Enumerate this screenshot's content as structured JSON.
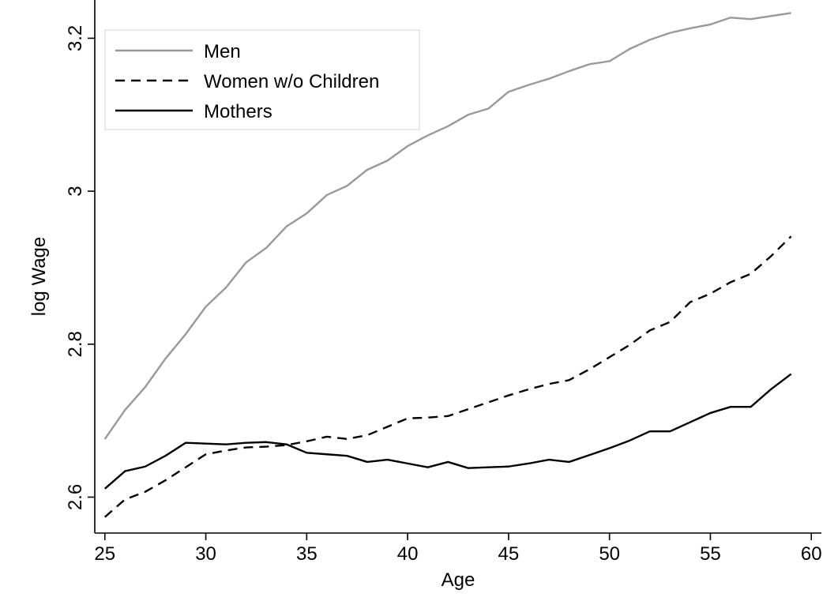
{
  "chart_data": {
    "type": "line",
    "xlabel": "Age",
    "ylabel": "log Wage",
    "xlim": [
      24.5,
      60.5
    ],
    "ylim": [
      2.553,
      3.25
    ],
    "xticks": [
      25,
      30,
      35,
      40,
      45,
      50,
      55,
      60
    ],
    "yticks": [
      2.6,
      2.8,
      3,
      3.2
    ],
    "xtick_labels": [
      "25",
      "30",
      "35",
      "40",
      "45",
      "50",
      "55",
      "60"
    ],
    "ytick_labels": [
      "2.6",
      "2.8",
      "3",
      "3.2"
    ],
    "grid": false,
    "legend_position": "top-left",
    "x": [
      25,
      26,
      27,
      28,
      29,
      30,
      31,
      32,
      33,
      34,
      35,
      36,
      37,
      38,
      39,
      40,
      41,
      42,
      43,
      44,
      45,
      46,
      47,
      48,
      49,
      50,
      51,
      52,
      53,
      54,
      55,
      56,
      57,
      58,
      59
    ],
    "series": [
      {
        "name": "Men",
        "color": "#999999",
        "dash": "solid",
        "values": [
          2.676,
          2.714,
          2.744,
          2.781,
          2.813,
          2.849,
          2.874,
          2.907,
          2.926,
          2.954,
          2.971,
          2.995,
          3.007,
          3.028,
          3.04,
          3.059,
          3.073,
          3.085,
          3.1,
          3.108,
          3.13,
          3.139,
          3.147,
          3.157,
          3.166,
          3.17,
          3.186,
          3.198,
          3.207,
          3.213,
          3.218,
          3.227,
          3.225,
          3.229,
          3.233
        ]
      },
      {
        "name": "Women w/o Children",
        "color": "#000000",
        "dash": "dashed",
        "values": [
          2.574,
          2.597,
          2.607,
          2.622,
          2.639,
          2.656,
          2.661,
          2.665,
          2.666,
          2.668,
          2.673,
          2.679,
          2.676,
          2.681,
          2.692,
          2.703,
          2.704,
          2.706,
          2.715,
          2.724,
          2.733,
          2.741,
          2.748,
          2.753,
          2.767,
          2.783,
          2.799,
          2.818,
          2.829,
          2.855,
          2.866,
          2.881,
          2.892,
          2.915,
          2.941
        ]
      },
      {
        "name": "Mothers",
        "color": "#000000",
        "dash": "solid",
        "values": [
          2.611,
          2.634,
          2.64,
          2.654,
          2.671,
          2.67,
          2.669,
          2.671,
          2.672,
          2.669,
          2.658,
          2.656,
          2.654,
          2.646,
          2.649,
          2.644,
          2.639,
          2.646,
          2.638,
          2.639,
          2.64,
          2.644,
          2.649,
          2.646,
          2.655,
          2.664,
          2.674,
          2.686,
          2.686,
          2.698,
          2.71,
          2.718,
          2.718,
          2.741,
          2.761
        ]
      }
    ]
  }
}
